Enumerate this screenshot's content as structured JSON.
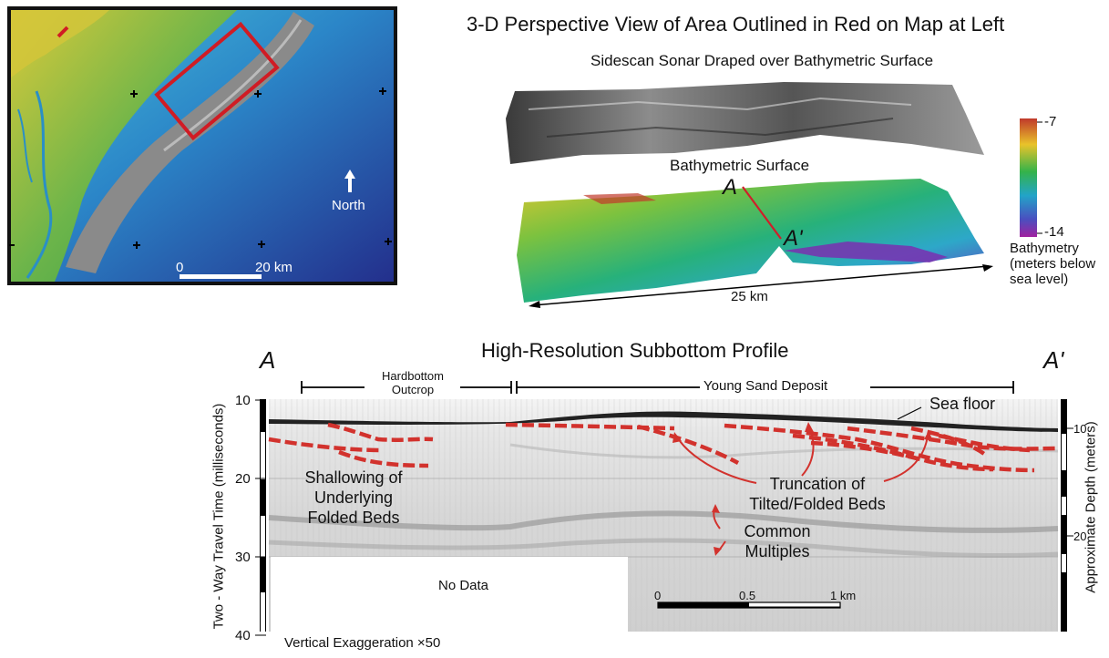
{
  "map": {
    "north_label": "North",
    "scale_start": "0",
    "scale_end": "20 km"
  },
  "perspective": {
    "title": "3-D Perspective View of Area Outlined in Red on Map at Left",
    "sonar_label": "Sidescan Sonar Draped over Bathymetric Surface",
    "bathy_label": "Bathymetric Surface",
    "point_a": "A",
    "point_a_prime": "A'",
    "distance": "25 km",
    "colorbar": {
      "max": "-7",
      "min": "-14",
      "title_lines": [
        "Bathymetry",
        "(meters below",
        "sea level)"
      ],
      "colors": [
        "#c0392b",
        "#e9c32a",
        "#34b34a",
        "#22a4c8",
        "#4a4fc0",
        "#a0219f"
      ]
    }
  },
  "profile": {
    "title": "High-Resolution Subbottom Profile",
    "end_a": "A",
    "end_a_prime": "A'",
    "hardbottom_lines": [
      "Hardbottom",
      "Outcrop"
    ],
    "young_sand": "Young Sand Deposit",
    "sea_floor": "Sea floor",
    "shallowing_lines": [
      "Shallowing of",
      "Underlying",
      "Folded Beds"
    ],
    "truncation_lines": [
      "Truncation of",
      "Tilted/Folded Beds"
    ],
    "multiples_lines": [
      "Common",
      "Multiples"
    ],
    "no_data": "No Data",
    "scale_labels": [
      "0",
      "0.5",
      "1 km"
    ],
    "left_axis_title": "Two - Way Travel Time (milliseconds)",
    "left_ticks": [
      "10",
      "20",
      "30",
      "40"
    ],
    "right_axis_title": "Approximate Depth (meters)",
    "right_ticks": [
      "10",
      "20"
    ],
    "footer": "Vertical Exaggeration ×50"
  }
}
